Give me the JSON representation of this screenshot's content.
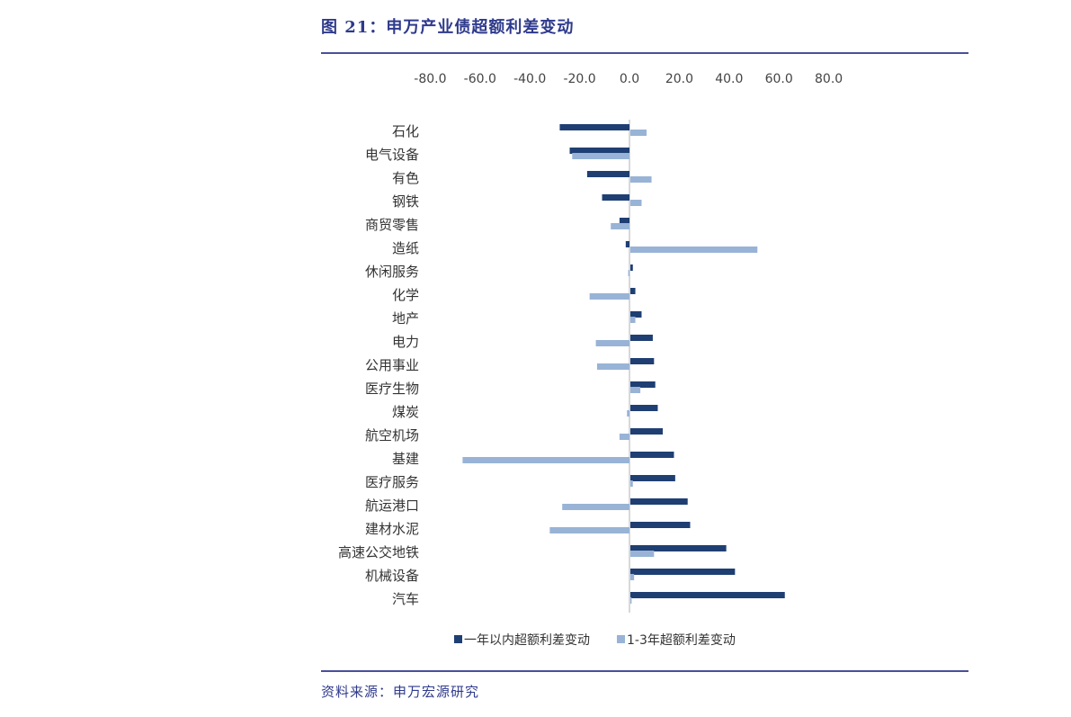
{
  "figure": {
    "title": "图 21：申万产业债超额利差变动",
    "source": "资料来源：申万宏源研究"
  },
  "colors": {
    "series_dark": "#1f3f73",
    "series_light": "#98b3d6",
    "axis_line": "#cccccc",
    "rule": "#4a4f9a",
    "title": "#2e3a8c"
  },
  "chart_data": {
    "type": "bar",
    "orientation": "horizontal",
    "title": "",
    "xlabel": "",
    "ylabel": "",
    "xlim": [
      -80,
      80
    ],
    "x_ticks": [
      "-80.0",
      "-60.0",
      "-40.0",
      "-20.0",
      "0.0",
      "20.0",
      "40.0",
      "60.0",
      "80.0"
    ],
    "x_tick_values": [
      -80,
      -60,
      -40,
      -20,
      0,
      20,
      40,
      60,
      80
    ],
    "x_axis_position": "top",
    "grid": false,
    "legend_position": "bottom",
    "categories": [
      "石化",
      "电气设备",
      "有色",
      "钢铁",
      "商贸零售",
      "造纸",
      "休闲服务",
      "化学",
      "地产",
      "电力",
      "公用事业",
      "医疗生物",
      "煤炭",
      "航空机场",
      "基建",
      "医疗服务",
      "航运港口",
      "建材水泥",
      "高速公交地铁",
      "机械设备",
      "汽车"
    ],
    "series": [
      {
        "name": "一年以内超额利差变动",
        "values": [
          -28,
          -24,
          -17,
          -11,
          -4,
          -1.5,
          1,
          2,
          4.5,
          9,
          9.5,
          10,
          11,
          13,
          17.5,
          18,
          23,
          24,
          38.5,
          42,
          62
        ]
      },
      {
        "name": "1-3年超额利差变动",
        "values": [
          6.5,
          -23,
          8.5,
          4.5,
          -7.5,
          51,
          -0.5,
          -16,
          2,
          -13.5,
          -13,
          4,
          -1,
          -4,
          -67,
          1,
          -27,
          -32,
          9.5,
          1.5,
          0.5
        ]
      }
    ]
  }
}
